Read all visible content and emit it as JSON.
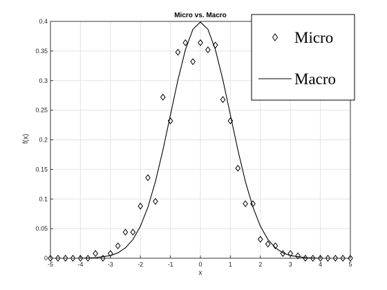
{
  "chart_data": {
    "type": "scatter",
    "title": "Micro vs. Macro",
    "xlabel": "x",
    "ylabel": "f(x)",
    "xlim": [
      -5,
      5
    ],
    "ylim": [
      0,
      0.4
    ],
    "grid": true,
    "legend_position": "top-right",
    "x_ticks": [
      "-5",
      "-4",
      "-3",
      "-2",
      "-1",
      "0",
      "1",
      "2",
      "3",
      "4",
      "5"
    ],
    "y_ticks": [
      "0",
      "0.05",
      "0.1",
      "0.15",
      "0.2",
      "0.25",
      "0.3",
      "0.35",
      "0.4"
    ],
    "series": [
      {
        "name": "Micro",
        "marker": "diamond",
        "color": "#000000",
        "x": [
          -5,
          -4.75,
          -4.5,
          -4.25,
          -4,
          -3.75,
          -3.5,
          -3.25,
          -3,
          -2.75,
          -2.5,
          -2.25,
          -2,
          -1.75,
          -1.5,
          -1.25,
          -1,
          -0.75,
          -0.5,
          -0.25,
          0,
          0.25,
          0.5,
          0.75,
          1,
          1.25,
          1.5,
          1.75,
          2,
          2.25,
          2.5,
          2.75,
          3,
          3.25,
          3.5,
          3.75,
          4,
          4.25,
          4.5,
          4.75,
          5
        ],
        "y": [
          0,
          0,
          0,
          0,
          0,
          0,
          0.008,
          0,
          0.008,
          0.021,
          0.044,
          0.044,
          0.088,
          0.136,
          0.096,
          0.272,
          0.232,
          0.348,
          0.364,
          0.332,
          0.364,
          0.352,
          0.36,
          0.268,
          0.232,
          0.152,
          0.092,
          0.092,
          0.032,
          0.024,
          0.021,
          0.008,
          0.008,
          0.004,
          0,
          0,
          0,
          0,
          0,
          0,
          0
        ]
      },
      {
        "name": "Macro",
        "marker": "line",
        "color": "#000000",
        "function": "standard normal pdf",
        "x": [
          -5,
          -4.5,
          -4,
          -3.5,
          -3,
          -2.75,
          -2.5,
          -2.25,
          -2,
          -1.75,
          -1.5,
          -1.25,
          -1,
          -0.75,
          -0.5,
          -0.25,
          0,
          0.25,
          0.5,
          0.75,
          1,
          1.25,
          1.5,
          1.75,
          2,
          2.25,
          2.5,
          2.75,
          3,
          3.5,
          4,
          4.5,
          5
        ],
        "y": [
          0,
          0,
          0.0001,
          0.0009,
          0.0044,
          0.0091,
          0.0175,
          0.0317,
          0.054,
          0.0863,
          0.1295,
          0.1826,
          0.242,
          0.3011,
          0.3521,
          0.3867,
          0.3989,
          0.3867,
          0.3521,
          0.3011,
          0.242,
          0.1826,
          0.1295,
          0.0863,
          0.054,
          0.0317,
          0.0175,
          0.0091,
          0.0044,
          0.0009,
          0.0001,
          0,
          0
        ]
      }
    ]
  }
}
